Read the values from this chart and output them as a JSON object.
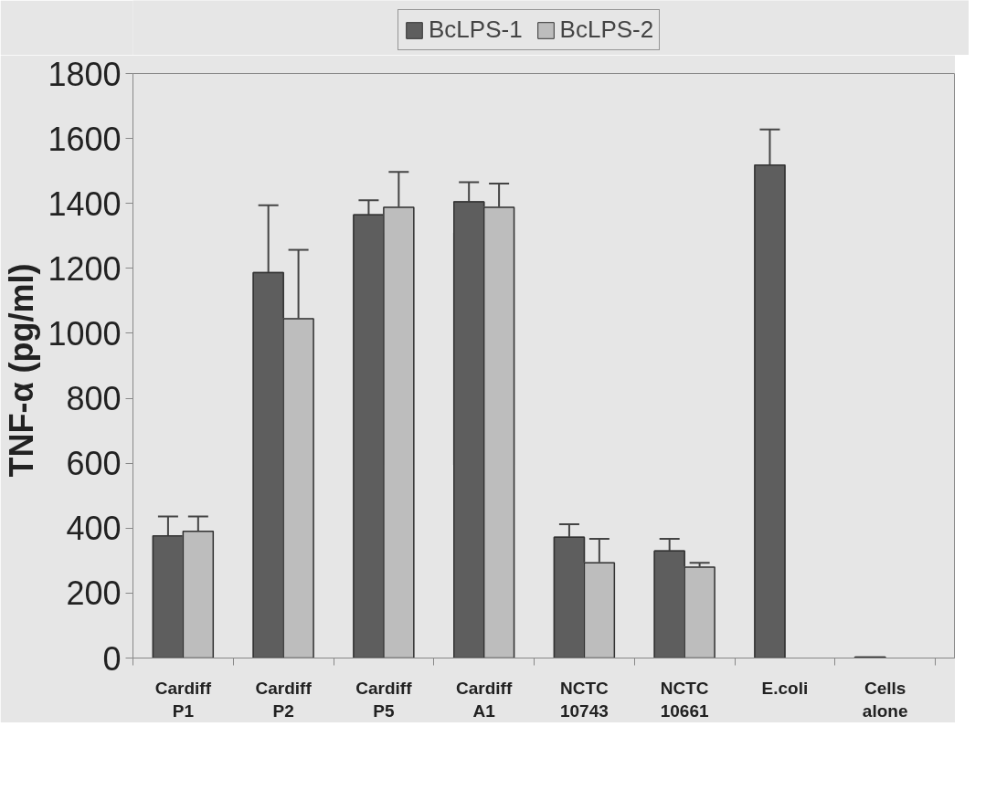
{
  "chart_data": {
    "type": "bar",
    "ylabel": "TNF-α  (pg/ml)",
    "categories": [
      "Cardiff P1",
      "Cardiff P2",
      "Cardiff P5",
      "Cardiff A1",
      "NCTC 10743",
      "NCTC 10661",
      "E.coli",
      "Cells alone"
    ],
    "series": [
      {
        "name": "BcLPS-1",
        "color": "#5e5e5e",
        "values": [
          376,
          1187,
          1365,
          1405,
          372,
          330,
          1518,
          3
        ],
        "errors": [
          [
            376,
            436
          ],
          [
            1187,
            1394
          ],
          [
            1365,
            1410
          ],
          [
            1405,
            1465
          ],
          [
            372,
            412
          ],
          [
            330,
            367
          ],
          [
            1518,
            1628
          ],
          null
        ]
      },
      {
        "name": "BcLPS-2",
        "color": "#bdbdbd",
        "values": [
          390,
          1045,
          1388,
          1388,
          293,
          280,
          null,
          null
        ],
        "errors": [
          [
            390,
            436
          ],
          [
            1045,
            1257
          ],
          [
            1388,
            1497
          ],
          [
            1388,
            1461
          ],
          [
            293,
            367
          ],
          [
            280,
            293
          ],
          null,
          null
        ]
      }
    ],
    "ylim": [
      0,
      1800
    ],
    "yticks": [
      0,
      200,
      400,
      600,
      800,
      1000,
      1200,
      1400,
      1600,
      1800
    ],
    "grid": false,
    "legend": "top"
  }
}
